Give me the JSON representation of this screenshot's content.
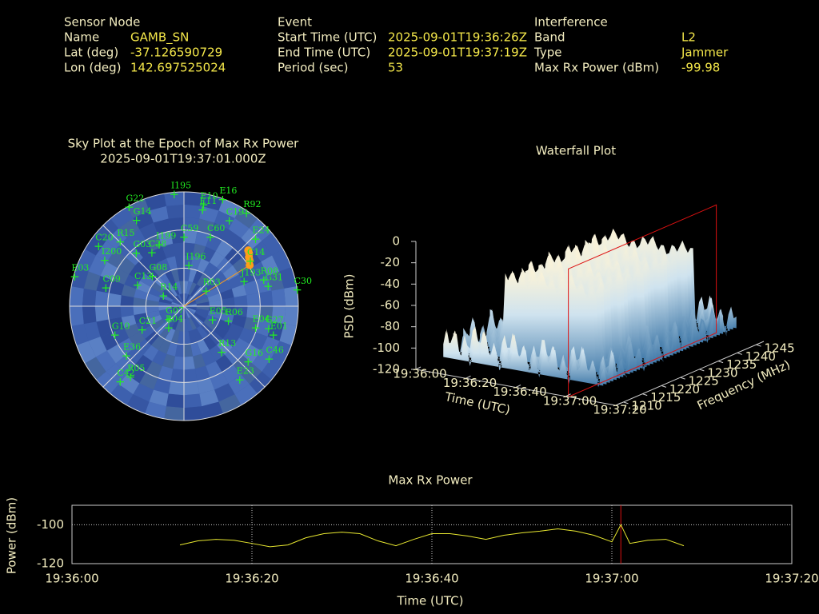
{
  "info": [
    {
      "heading": "Sensor Node",
      "rows": [
        [
          "Name",
          "GAMB_SN"
        ],
        [
          "Lat (deg)",
          "-37.126590729"
        ],
        [
          "Lon (deg)",
          "142.697525024"
        ]
      ]
    },
    {
      "heading": "Event",
      "rows": [
        [
          "Start Time (UTC)",
          "2025-09-01T19:36:26Z"
        ],
        [
          "End Time (UTC)",
          "2025-09-01T19:37:19Z"
        ],
        [
          "Period (sec)",
          "53"
        ]
      ]
    },
    {
      "heading": "Interference",
      "rows": [
        [
          "Band",
          "L2"
        ],
        [
          "Type",
          "Jammer"
        ],
        [
          "Max Rx Power (dBm)",
          "-99.98"
        ]
      ]
    }
  ],
  "chart_data": [
    {
      "type": "sky",
      "title": "Sky Plot at the Epoch of Max Rx Power",
      "subtitle": "2025-09-01T19:37:01.000Z",
      "satellites": [
        {
          "name": "G22",
          "az": 331,
          "el": 1
        },
        {
          "name": "I195",
          "az": 355,
          "el": 2
        },
        {
          "name": "E16",
          "az": 20,
          "el": 1
        },
        {
          "name": "E10",
          "az": 11,
          "el": 9
        },
        {
          "name": "E11",
          "az": 11,
          "el": 13
        },
        {
          "name": "C19",
          "az": 28,
          "el": 14
        },
        {
          "name": "R92",
          "az": 34,
          "el": 2
        },
        {
          "name": "G14",
          "az": 331,
          "el": 13
        },
        {
          "name": "E24",
          "az": 47,
          "el": 13
        },
        {
          "name": "C20",
          "az": 305,
          "el": 8
        },
        {
          "name": "R15",
          "az": 315,
          "el": 19
        },
        {
          "name": "I199",
          "az": 338,
          "el": 38
        },
        {
          "name": "C59",
          "az": 0,
          "el": 36
        },
        {
          "name": "C60",
          "az": 21,
          "el": 32
        },
        {
          "name": "G03",
          "az": 318,
          "el": 34
        },
        {
          "name": "C38",
          "az": 329,
          "el": 41
        },
        {
          "name": "I200",
          "az": 300,
          "el": 18
        },
        {
          "name": "C14",
          "az": 56,
          "el": 27
        },
        {
          "name": "I196",
          "az": 7,
          "el": 58
        },
        {
          "name": "E03",
          "az": 285,
          "el": 1
        },
        {
          "name": "G08",
          "az": 313,
          "el": 56
        },
        {
          "name": "J193",
          "az": 68,
          "el": 39
        },
        {
          "name": "R08",
          "az": 72,
          "el": 24
        },
        {
          "name": "G31",
          "az": 77,
          "el": 22
        },
        {
          "name": "C30",
          "az": 82,
          "el": 0
        },
        {
          "name": "C09",
          "az": 283,
          "el": 27
        },
        {
          "name": "C13",
          "az": 294,
          "el": 50
        },
        {
          "name": "R03",
          "az": 56,
          "el": 69
        },
        {
          "name": "R14",
          "az": 296,
          "el": 72
        },
        {
          "name": "G07",
          "az": 228,
          "el": 74
        },
        {
          "name": "R04",
          "az": 215,
          "el": 69
        },
        {
          "name": "C21",
          "az": 240,
          "el": 52
        },
        {
          "name": "E05",
          "az": 116,
          "el": 65
        },
        {
          "name": "R06",
          "az": 109,
          "el": 53
        },
        {
          "name": "E04",
          "az": 107,
          "el": 31
        },
        {
          "name": "G27",
          "az": 105,
          "el": 21
        },
        {
          "name": "E01",
          "az": 108,
          "el": 16
        },
        {
          "name": "G10",
          "az": 247,
          "el": 31
        },
        {
          "name": "R13",
          "az": 141,
          "el": 43
        },
        {
          "name": "C46",
          "az": 122,
          "el": 11
        },
        {
          "name": "E36",
          "az": 229,
          "el": 30
        },
        {
          "name": "G16",
          "az": 131,
          "el": 23
        },
        {
          "name": "R05",
          "az": 217,
          "el": 20
        },
        {
          "name": "E23",
          "az": 143,
          "el": 17
        },
        {
          "name": "C42",
          "az": 220,
          "el": 12
        }
      ],
      "jammer": {
        "color": "#ff9d1a",
        "az": [
          49,
          51,
          53,
          55,
          58
        ],
        "el": [
          23,
          24,
          26,
          27,
          29
        ]
      }
    },
    {
      "type": "waterfall",
      "title": "Waterfall Plot",
      "zlabel": "PSD (dBm)",
      "tlabel": "Time (UTC)",
      "flabel": "Frequency (MHz)",
      "zlim": [
        -120,
        0
      ],
      "zticks": [
        0,
        -20,
        -40,
        -60,
        -80,
        -100,
        -120
      ],
      "tlim": [
        "19:36:00",
        "19:37:20"
      ],
      "tticks": [
        "19:36:00",
        "19:36:20",
        "19:36:40",
        "19:37:00",
        "19:37:20"
      ],
      "flim": [
        1208,
        1247
      ],
      "fticks": [
        1210,
        1215,
        1220,
        1225,
        1230,
        1235,
        1240,
        1245
      ],
      "marker": "19:37:01",
      "marker_color": "#dd1111"
    },
    {
      "type": "line",
      "title": "Max Rx Power",
      "ylabel": "Power (dBm)",
      "xlabel": "Time (UTC)",
      "color": "#e8e830",
      "marker": "19:37:01",
      "marker_color": "#dd1111",
      "xlim": [
        "19:36:00",
        "19:37:20"
      ],
      "xticks": [
        "19:36:00",
        "19:36:20",
        "19:36:40",
        "19:37:00",
        "19:37:20"
      ],
      "ylim": [
        -120,
        -90
      ],
      "yticks": [
        -100,
        -120
      ],
      "grid": true,
      "x": [
        "19:36:12",
        "19:36:14",
        "19:36:16",
        "19:36:18",
        "19:36:20",
        "19:36:22",
        "19:36:24",
        "19:36:26",
        "19:36:28",
        "19:36:30",
        "19:36:32",
        "19:36:34",
        "19:36:36",
        "19:36:38",
        "19:36:40",
        "19:36:42",
        "19:36:44",
        "19:36:46",
        "19:36:48",
        "19:36:50",
        "19:36:52",
        "19:36:54",
        "19:36:56",
        "19:36:58",
        "19:37:00",
        "19:37:01",
        "19:37:02",
        "19:37:04",
        "19:37:06",
        "19:37:08"
      ],
      "values": [
        -110.4,
        -108.3,
        -107.5,
        -108,
        -109.6,
        -111.3,
        -110.4,
        -106.7,
        -104.6,
        -103.8,
        -104.6,
        -108.3,
        -110.8,
        -107.5,
        -104.6,
        -104.6,
        -105.8,
        -107.5,
        -105.4,
        -104.2,
        -103.3,
        -102.1,
        -103.3,
        -105.4,
        -108.8,
        -100,
        -109.6,
        -108,
        -107.5,
        -110.8
      ]
    }
  ]
}
